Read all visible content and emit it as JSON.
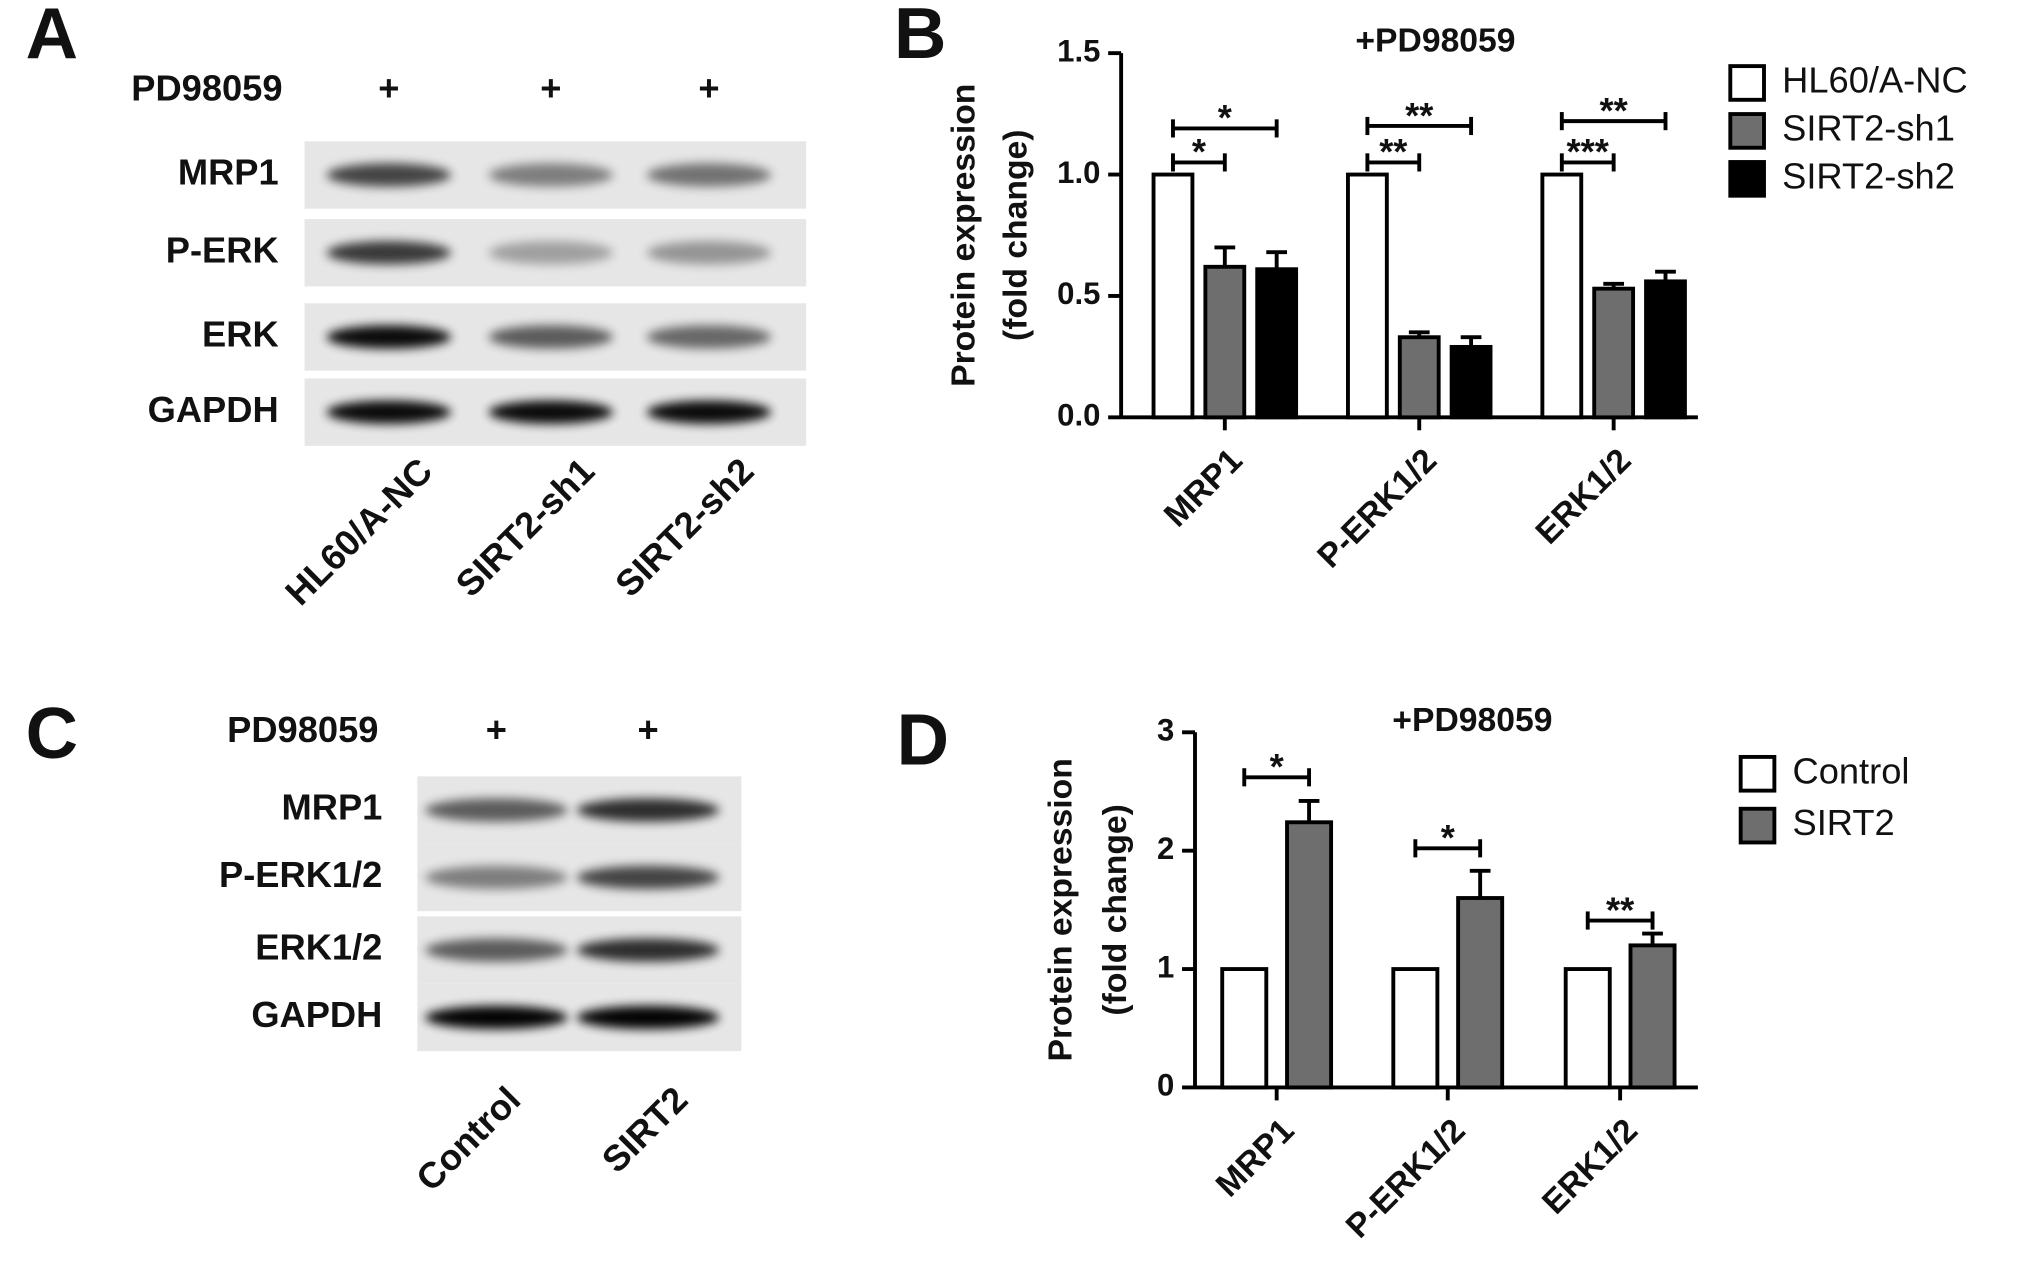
{
  "blots": [
    {
      "letter": "A",
      "treatment": "PD98059",
      "marks": [
        "+",
        "+",
        "+"
      ],
      "rows": [
        "MRP1",
        "P-ERK",
        "ERK",
        "GAPDH"
      ],
      "lanes": [
        "HL60/A-NC",
        "SIRT2-sh1",
        "SIRT2-sh2"
      ]
    },
    {
      "letter": "C",
      "treatment": "PD98059",
      "marks": [
        "+",
        "+"
      ],
      "rows": [
        "MRP1",
        "P-ERK1/2",
        "ERK1/2",
        "GAPDH"
      ],
      "lanes": [
        "Control",
        "SIRT2"
      ]
    }
  ],
  "chart_data": [
    {
      "type": "bar",
      "letter": "B",
      "title": "+PD98059",
      "ylabel": [
        "Protein expression",
        "(fold change)"
      ],
      "categories": [
        "MRP1",
        "P-ERK1/2",
        "ERK1/2"
      ],
      "series": [
        {
          "name": "HL60/A-NC",
          "color": "#ffffff",
          "values": [
            1.0,
            1.0,
            1.0
          ],
          "errors": [
            0,
            0,
            0
          ]
        },
        {
          "name": "SIRT2-sh1",
          "color": "#6e6e6e",
          "values": [
            0.62,
            0.33,
            0.53
          ],
          "errors": [
            0.08,
            0.02,
            0.02
          ]
        },
        {
          "name": "SIRT2-sh2",
          "color": "#000000",
          "values": [
            0.61,
            0.29,
            0.56
          ],
          "errors": [
            0.07,
            0.04,
            0.04
          ]
        }
      ],
      "ylim": [
        0,
        1.5
      ],
      "yticks": [
        {
          "value": 0,
          "label": "0.0"
        },
        0.5,
        {
          "value": 1,
          "label": "1.0"
        },
        1.5
      ],
      "significance": [
        {
          "category": 0,
          "series": [
            0,
            1
          ],
          "y": 1.05,
          "label": "*"
        },
        {
          "category": 0,
          "series": [
            0,
            2
          ],
          "y": 1.19,
          "label": "*"
        },
        {
          "category": 1,
          "series": [
            0,
            1
          ],
          "y": 1.05,
          "label": "**"
        },
        {
          "category": 1,
          "series": [
            0,
            2
          ],
          "y": 1.2,
          "label": "**"
        },
        {
          "category": 2,
          "series": [
            0,
            1
          ],
          "y": 1.05,
          "label": "***"
        },
        {
          "category": 2,
          "series": [
            0,
            2
          ],
          "y": 1.22,
          "label": "**"
        }
      ]
    },
    {
      "type": "bar",
      "letter": "D",
      "title": "+PD98059",
      "ylabel": [
        "Protein expression",
        "(fold change)"
      ],
      "categories": [
        "MRP1",
        "P-ERK1/2",
        "ERK1/2"
      ],
      "series": [
        {
          "name": "Control",
          "color": "#ffffff",
          "values": [
            1,
            1,
            1
          ],
          "errors": [
            0,
            0,
            0
          ]
        },
        {
          "name": "SIRT2",
          "color": "#6e6e6e",
          "values": [
            2.24,
            1.6,
            1.2
          ],
          "errors": [
            0.18,
            0.23,
            0.1
          ]
        }
      ],
      "ylim": [
        0,
        3
      ],
      "yticks": [
        0,
        1,
        2,
        3
      ],
      "significance": [
        {
          "category": 0,
          "series": [
            0,
            1
          ],
          "y": 2.62,
          "label": "*"
        },
        {
          "category": 1,
          "series": [
            0,
            1
          ],
          "y": 2.02,
          "label": "*"
        },
        {
          "category": 2,
          "series": [
            0,
            1
          ],
          "y": 1.41,
          "label": "**"
        }
      ]
    }
  ]
}
